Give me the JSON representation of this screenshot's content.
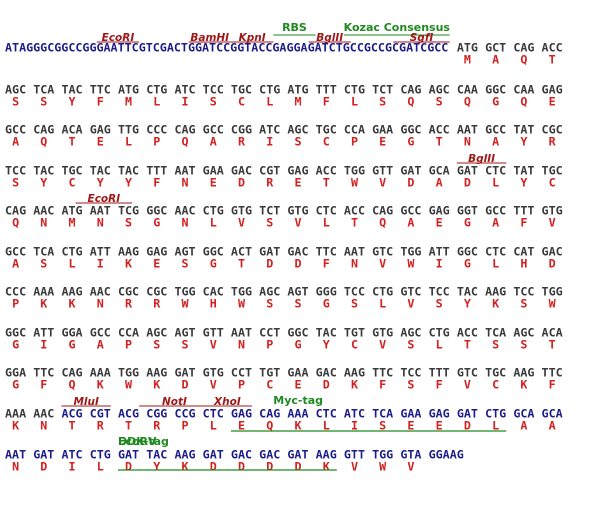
{
  "sequence": {
    "leader": "ATAGGGCGGCCGGGAATTCGTCGACTGGATCCGGTACCGAGGAGATCTGCCGCCGCGATCGCC",
    "rows": [
      {
        "codons": [
          "ATG",
          "GCT",
          "CAG",
          "ACC"
        ],
        "aminos": [
          "M",
          "A",
          "Q",
          "T"
        ]
      },
      {
        "codons": [
          "AGC",
          "TCA",
          "TAC",
          "TTC",
          "ATG",
          "CTG",
          "ATC",
          "TCC",
          "TGC",
          "CTG",
          "ATG",
          "TTT",
          "CTG",
          "TCT",
          "CAG",
          "AGC",
          "CAA",
          "GGC",
          "CAA",
          "GAG"
        ],
        "aminos": [
          "S",
          "S",
          "Y",
          "F",
          "M",
          "L",
          "I",
          "S",
          "C",
          "L",
          "M",
          "F",
          "L",
          "S",
          "Q",
          "S",
          "Q",
          "G",
          "Q",
          "E"
        ]
      },
      {
        "codons": [
          "GCC",
          "CAG",
          "ACA",
          "GAG",
          "TTG",
          "CCC",
          "CAG",
          "GCC",
          "CGG",
          "ATC",
          "AGC",
          "TGC",
          "CCA",
          "GAA",
          "GGC",
          "ACC",
          "AAT",
          "GCC",
          "TAT",
          "CGC"
        ],
        "aminos": [
          "A",
          "Q",
          "T",
          "E",
          "L",
          "P",
          "Q",
          "A",
          "R",
          "I",
          "S",
          "C",
          "P",
          "E",
          "G",
          "T",
          "N",
          "A",
          "Y",
          "R"
        ]
      },
      {
        "codons": [
          "TCC",
          "TAC",
          "TGC",
          "TAC",
          "TAC",
          "TTT",
          "AAT",
          "GAA",
          "GAC",
          "CGT",
          "GAG",
          "ACC",
          "TGG",
          "GTT",
          "GAT",
          "GCA",
          "GAT",
          "CTC",
          "TAT",
          "TGC"
        ],
        "aminos": [
          "S",
          "Y",
          "C",
          "Y",
          "Y",
          "F",
          "N",
          "E",
          "D",
          "R",
          "E",
          "T",
          "W",
          "V",
          "D",
          "A",
          "D",
          "L",
          "Y",
          "C"
        ]
      },
      {
        "codons": [
          "CAG",
          "AAC",
          "ATG",
          "AAT",
          "TCG",
          "GGC",
          "AAC",
          "CTG",
          "GTG",
          "TCT",
          "GTG",
          "CTC",
          "ACC",
          "CAG",
          "GCC",
          "GAG",
          "GGT",
          "GCC",
          "TTT",
          "GTG"
        ],
        "aminos": [
          "Q",
          "N",
          "M",
          "N",
          "S",
          "G",
          "N",
          "L",
          "V",
          "S",
          "V",
          "L",
          "T",
          "Q",
          "A",
          "E",
          "G",
          "A",
          "F",
          "V"
        ]
      },
      {
        "codons": [
          "GCC",
          "TCA",
          "CTG",
          "ATT",
          "AAG",
          "GAG",
          "AGT",
          "GGC",
          "ACT",
          "GAT",
          "GAC",
          "TTC",
          "AAT",
          "GTC",
          "TGG",
          "ATT",
          "GGC",
          "CTC",
          "CAT",
          "GAC"
        ],
        "aminos": [
          "A",
          "S",
          "L",
          "I",
          "K",
          "E",
          "S",
          "G",
          "T",
          "D",
          "D",
          "F",
          "N",
          "V",
          "W",
          "I",
          "G",
          "L",
          "H",
          "D"
        ]
      },
      {
        "codons": [
          "CCC",
          "AAA",
          "AAG",
          "AAC",
          "CGC",
          "CGC",
          "TGG",
          "CAC",
          "TGG",
          "AGC",
          "AGT",
          "GGG",
          "TCC",
          "CTG",
          "GTC",
          "TCC",
          "TAC",
          "AAG",
          "TCC",
          "TGG"
        ],
        "aminos": [
          "P",
          "K",
          "K",
          "N",
          "R",
          "R",
          "W",
          "H",
          "W",
          "S",
          "S",
          "G",
          "S",
          "L",
          "V",
          "S",
          "Y",
          "K",
          "S",
          "W"
        ]
      },
      {
        "codons": [
          "GGC",
          "ATT",
          "GGA",
          "GCC",
          "CCA",
          "AGC",
          "AGT",
          "GTT",
          "AAT",
          "CCT",
          "GGC",
          "TAC",
          "TGT",
          "GTG",
          "AGC",
          "CTG",
          "ACC",
          "TCA",
          "AGC",
          "ACA"
        ],
        "aminos": [
          "G",
          "I",
          "G",
          "A",
          "P",
          "S",
          "S",
          "V",
          "N",
          "P",
          "G",
          "Y",
          "C",
          "V",
          "S",
          "L",
          "T",
          "S",
          "S",
          "T"
        ]
      },
      {
        "codons": [
          "GGA",
          "TTC",
          "CAG",
          "AAA",
          "TGG",
          "AAG",
          "GAT",
          "GTG",
          "CCT",
          "TGT",
          "GAA",
          "GAC",
          "AAG",
          "TTC",
          "TCC",
          "TTT",
          "GTC",
          "TGC",
          "AAG",
          "TTC"
        ],
        "aminos": [
          "G",
          "F",
          "Q",
          "K",
          "W",
          "K",
          "D",
          "V",
          "P",
          "C",
          "E",
          "D",
          "K",
          "F",
          "S",
          "F",
          "V",
          "C",
          "K",
          "F"
        ]
      },
      {
        "codons": [
          "AAA",
          "AAC",
          "ACG",
          "CGT",
          "ACG",
          "CGG",
          "CCG",
          "CTC",
          "GAG",
          "CAG",
          "AAA",
          "CTC",
          "ATC",
          "TCA",
          "GAA",
          "GAG",
          "GAT",
          "CTG",
          "GCA",
          "GCA"
        ],
        "aminos": [
          "K",
          "N",
          "T",
          "R",
          "T",
          "R",
          "P",
          "L",
          "E",
          "Q",
          "K",
          "L",
          "I",
          "S",
          "E",
          "E",
          "D",
          "L",
          "A",
          "A"
        ]
      },
      {
        "codons": [
          "AAT",
          "GAT",
          "ATC",
          "CTG",
          "GAT",
          "TAC",
          "AAG",
          "GAT",
          "GAC",
          "GAC",
          "GAT",
          "AAG",
          "GTT",
          "TGG",
          "GTA",
          "GGAAG"
        ],
        "aminos": [
          "N",
          "D",
          "I",
          "L",
          "D",
          "Y",
          "K",
          "D",
          "D",
          "D",
          "D",
          "K",
          "V",
          "W",
          "V"
        ]
      }
    ]
  },
  "annotations": [
    {
      "text": "RBS"
    },
    {
      "text": "Kozac Consensus"
    },
    {
      "text": "EcoRI"
    },
    {
      "text": "BamHI"
    },
    {
      "text": "KpnI"
    },
    {
      "text": "BglII"
    },
    {
      "text": "SgfI"
    },
    {
      "text": "BglII"
    },
    {
      "text": "EcoRI"
    },
    {
      "text": "MluI"
    },
    {
      "text": "NotI"
    },
    {
      "text": "XhoI"
    },
    {
      "text": "Myc-tag"
    },
    {
      "text": "EcoRV"
    },
    {
      "text": "DDK-tag"
    }
  ]
}
